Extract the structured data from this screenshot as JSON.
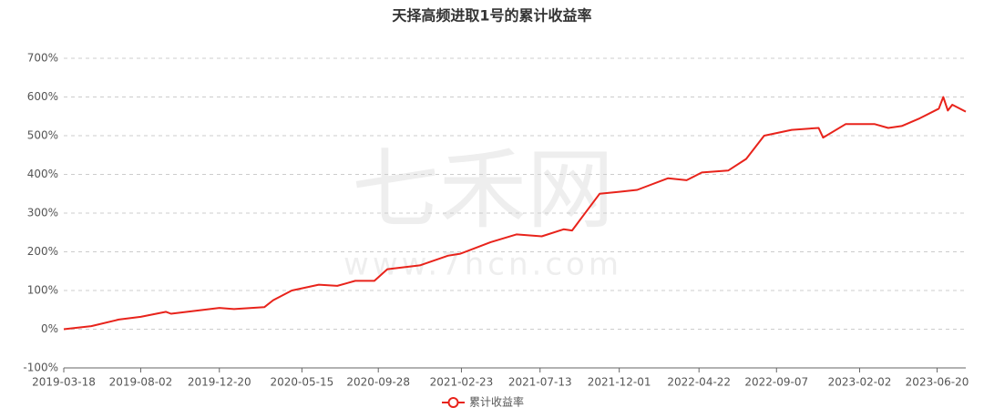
{
  "chart_data": {
    "type": "line",
    "title": "天择高频进取1号的累计收益率",
    "watermark": [
      "七禾网",
      "www.7hcn.com"
    ],
    "x": [
      "2019-03-18",
      "2019-05-06",
      "2019-06-24",
      "2019-08-02",
      "2019-09-16",
      "2019-09-25",
      "2019-12-20",
      "2020-01-15",
      "2020-03-09",
      "2020-03-25",
      "2020-04-27",
      "2020-06-14",
      "2020-07-17",
      "2020-08-18",
      "2020-09-21",
      "2020-10-14",
      "2020-12-11",
      "2021-01-30",
      "2021-02-21",
      "2021-04-16",
      "2021-06-01",
      "2021-07-16",
      "2021-08-24",
      "2021-09-08",
      "2021-10-27",
      "2021-12-01",
      "2022-01-02",
      "2022-02-26",
      "2022-03-31",
      "2022-04-27",
      "2022-06-13",
      "2022-07-15",
      "2022-08-16",
      "2022-10-04",
      "2022-11-21",
      "2022-11-29",
      "2023-01-08",
      "2023-03-01",
      "2023-03-25",
      "2023-04-18",
      "2023-05-20",
      "2023-06-23",
      "2023-07-01",
      "2023-07-09",
      "2023-07-17",
      "2023-08-10"
    ],
    "series": [
      {
        "name": "累计收益率",
        "color": "#e8231b",
        "values": [
          0,
          8,
          25,
          32,
          45,
          40,
          55,
          52,
          57,
          75,
          100,
          115,
          112,
          125,
          125,
          155,
          165,
          190,
          195,
          225,
          245,
          240,
          258,
          255,
          350,
          355,
          360,
          390,
          385,
          405,
          410,
          440,
          500,
          515,
          520,
          495,
          530,
          530,
          520,
          525,
          545,
          570,
          600,
          565,
          580,
          562
        ]
      }
    ],
    "xlim": [
      "2019-03-18",
      "2023-08-10"
    ],
    "xticks": [
      "2019-03-18",
      "2019-08-02",
      "2019-12-20",
      "2020-05-15",
      "2020-09-28",
      "2021-02-23",
      "2021-07-13",
      "2021-12-01",
      "2022-04-22",
      "2022-09-07",
      "2023-02-02",
      "2023-06-20"
    ],
    "ylim": [
      -100,
      700
    ],
    "yticks": [
      {
        "value": -100,
        "label": "-100%"
      },
      {
        "value": 0,
        "label": "0%"
      },
      {
        "value": 100,
        "label": "100%"
      },
      {
        "value": 200,
        "label": "200%"
      },
      {
        "value": 300,
        "label": "300%"
      },
      {
        "value": 400,
        "label": "400%"
      },
      {
        "value": 500,
        "label": "500%"
      },
      {
        "value": 600,
        "label": "600%"
      },
      {
        "value": 700,
        "label": "700%"
      }
    ],
    "grid": true,
    "legend": "bottom"
  }
}
